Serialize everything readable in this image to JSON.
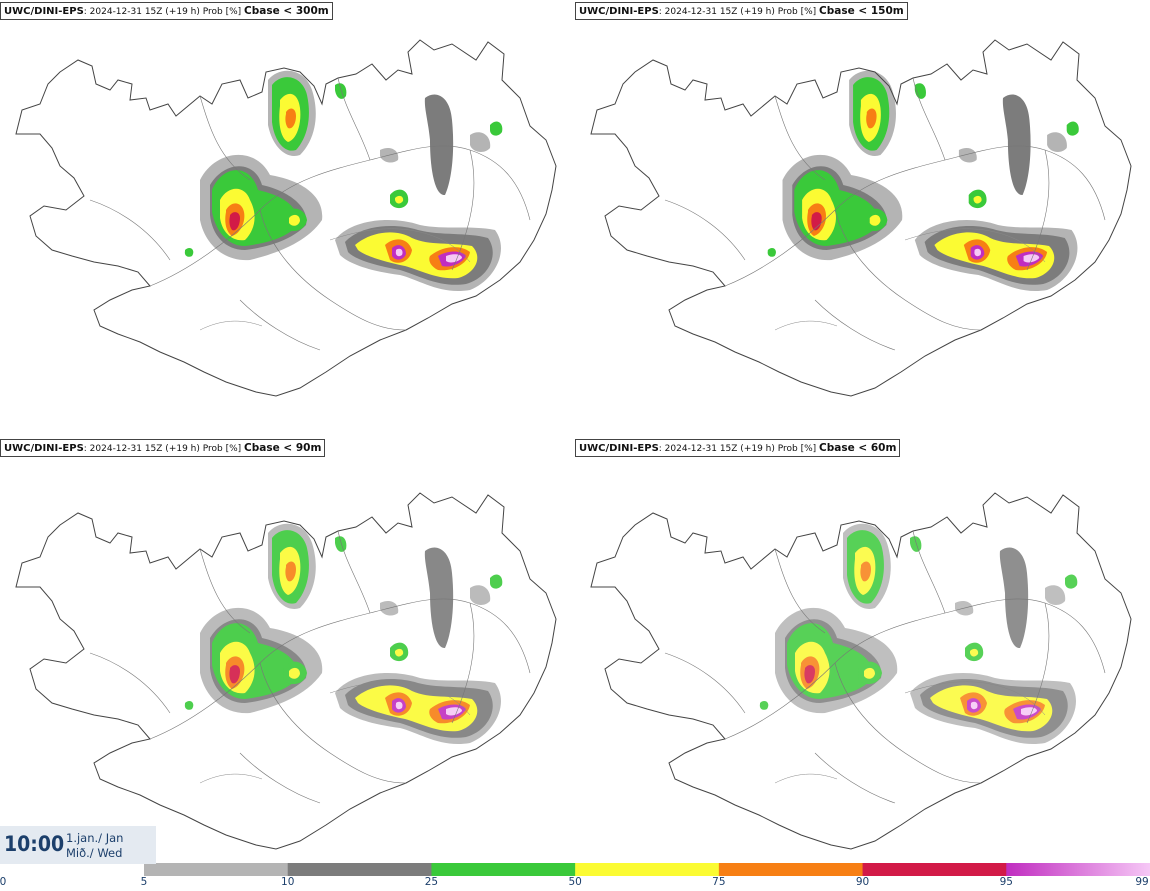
{
  "panels": [
    {
      "model": "UWC/DINI-EPS",
      "run": ": 2024-12-31 15Z (+19 h) Prob [%]",
      "threshold": "Cbase < 300m"
    },
    {
      "model": "UWC/DINI-EPS",
      "run": ": 2024-12-31 15Z (+19 h) Prob [%]",
      "threshold": "Cbase < 150m"
    },
    {
      "model": "UWC/DINI-EPS",
      "run": ": 2024-12-31 15Z (+19 h) Prob [%]",
      "threshold": "Cbase < 90m"
    },
    {
      "model": "UWC/DINI-EPS",
      "run": ": 2024-12-31 15Z (+19 h) Prob [%]",
      "threshold": "Cbase < 60m"
    }
  ],
  "valid_time": {
    "clock": "10:00",
    "date": "1.jan./ Jan",
    "weekday": "Mið./ Wed"
  },
  "legend": {
    "ticks": [
      "0",
      "5",
      "10",
      "25",
      "50",
      "75",
      "90",
      "95",
      "99"
    ],
    "bins": [
      {
        "from": 5,
        "to": 10,
        "color": "#b4b4b4"
      },
      {
        "from": 10,
        "to": 25,
        "color": "#7c7c7c"
      },
      {
        "from": 25,
        "to": 50,
        "color": "#3ac93a"
      },
      {
        "from": 50,
        "to": 75,
        "color": "#fbfb33"
      },
      {
        "from": 75,
        "to": 90,
        "color": "#f77f14"
      },
      {
        "from": 90,
        "to": 95,
        "color": "#d21a47"
      },
      {
        "from": 95,
        "to": 99,
        "color": "#c02dc0"
      }
    ],
    "top_color": "#f6c8f6"
  }
}
